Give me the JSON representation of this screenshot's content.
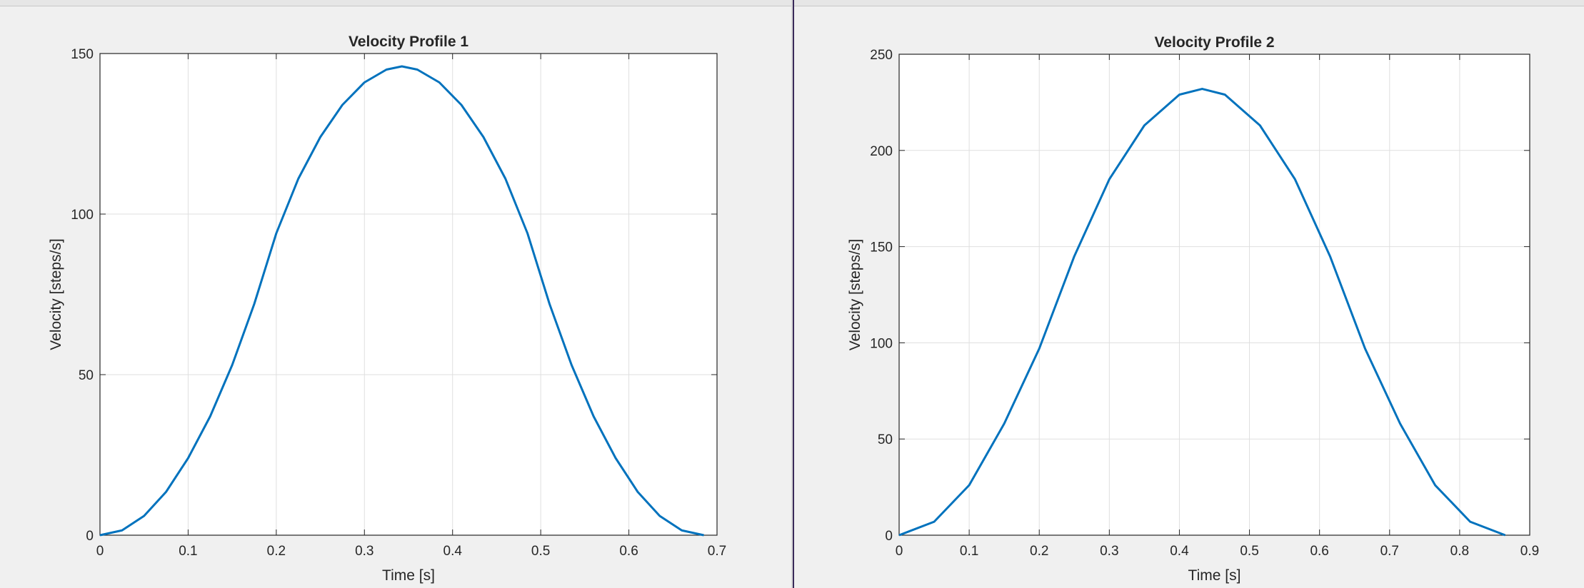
{
  "chart_data": [
    {
      "type": "line",
      "title": "Velocity Profile 1",
      "x_label": "Time [s]",
      "y_label": "Velocity [steps/s]",
      "xlim": [
        0,
        0.7
      ],
      "ylim": [
        0,
        150
      ],
      "xticks": [
        0,
        0.1,
        0.2,
        0.3,
        0.4,
        0.5,
        0.6,
        0.7
      ],
      "yticks": [
        0,
        50,
        100,
        150
      ],
      "grid": true,
      "series": [
        {
          "name": "Velocity",
          "color": "#0072bd",
          "x": [
            0,
            0.025,
            0.05,
            0.075,
            0.1,
            0.125,
            0.15,
            0.175,
            0.2,
            0.225,
            0.25,
            0.275,
            0.3,
            0.325,
            0.3425,
            0.36,
            0.385,
            0.41,
            0.435,
            0.46,
            0.485,
            0.51,
            0.535,
            0.56,
            0.585,
            0.61,
            0.635,
            0.66,
            0.685
          ],
          "values": [
            0,
            1.5,
            6,
            13.5,
            24,
            37,
            53,
            72,
            94,
            111,
            124,
            134,
            141,
            145,
            146,
            145,
            141,
            134,
            124,
            111,
            94,
            72,
            53,
            37,
            24,
            13.5,
            6,
            1.5,
            0
          ]
        }
      ]
    },
    {
      "type": "line",
      "title": "Velocity Profile 2",
      "x_label": "Time [s]",
      "y_label": "Velocity [steps/s]",
      "xlim": [
        0,
        0.9
      ],
      "ylim": [
        0,
        250
      ],
      "xticks": [
        0,
        0.1,
        0.2,
        0.3,
        0.4,
        0.5,
        0.6,
        0.7,
        0.8,
        0.9
      ],
      "yticks": [
        0,
        50,
        100,
        150,
        200,
        250
      ],
      "grid": true,
      "series": [
        {
          "name": "Velocity",
          "color": "#0072bd",
          "x": [
            0,
            0.05,
            0.1,
            0.15,
            0.2,
            0.25,
            0.3,
            0.35,
            0.4,
            0.4325,
            0.465,
            0.515,
            0.565,
            0.615,
            0.665,
            0.715,
            0.765,
            0.815,
            0.865
          ],
          "values": [
            0,
            7,
            26,
            58,
            97,
            145,
            185,
            213,
            229,
            232,
            229,
            213,
            185,
            145,
            97,
            58,
            26,
            7,
            0
          ]
        }
      ]
    }
  ]
}
